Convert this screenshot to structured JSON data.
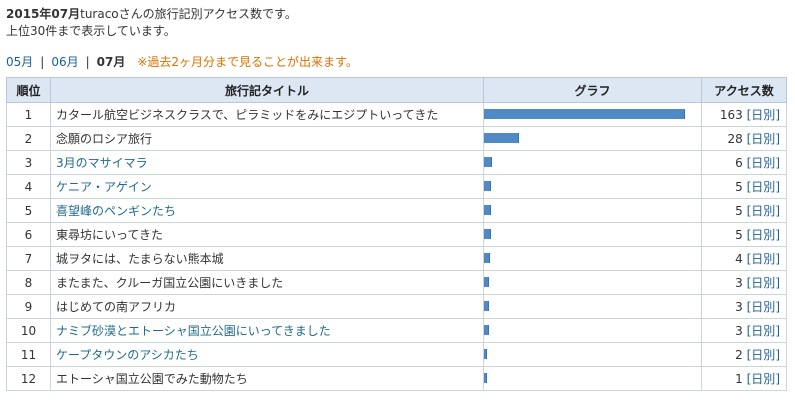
{
  "intro": {
    "period": "2015年07月",
    "user": "turaco",
    "rest": "さんの旅行記別アクセス数です。",
    "line2": "上位30件まで表示しています。"
  },
  "months": {
    "links": [
      "05月",
      "06月"
    ],
    "current": "07月",
    "note": "※過去2ヶ月分まで見ることが出来ます。"
  },
  "table": {
    "headers": [
      "順位",
      "旅行記タイトル",
      "グラフ",
      "アクセス数"
    ],
    "max_count": 163,
    "daily_label": "日別",
    "rows": [
      {
        "rank": "1",
        "title": "カタール航空ビジネスクラスで、ピラミッドをみにエジプトいってきた",
        "count": 163,
        "color": "#333333"
      },
      {
        "rank": "2",
        "title": "念願のロシア旅行",
        "count": 28,
        "color": "#333333"
      },
      {
        "rank": "3",
        "title": "3月のマサイマラ",
        "count": 6,
        "color": "#1f6b8e"
      },
      {
        "rank": "4",
        "title": "ケニア・アゲイン",
        "count": 5,
        "color": "#1f6b8e"
      },
      {
        "rank": "5",
        "title": "喜望峰のペンギンたち",
        "count": 5,
        "color": "#1f6b8e"
      },
      {
        "rank": "6",
        "title": "東尋坊にいってきた",
        "count": 5,
        "color": "#333333"
      },
      {
        "rank": "7",
        "title": "城ヲタには、たまらない熊本城",
        "count": 4,
        "color": "#333333"
      },
      {
        "rank": "8",
        "title": "またまた、クルーガ国立公園にいきました",
        "count": 3,
        "color": "#333333"
      },
      {
        "rank": "9",
        "title": "はじめての南アフリカ",
        "count": 3,
        "color": "#333333"
      },
      {
        "rank": "10",
        "title": "ナミブ砂漠とエトーシャ国立公園にいってきました",
        "count": 3,
        "color": "#1f6b8e"
      },
      {
        "rank": "11",
        "title": "ケープタウンのアシカたち",
        "count": 2,
        "color": "#1f6b8e"
      },
      {
        "rank": "12",
        "title": "エトーシャ国立公園でみた動物たち",
        "count": 1,
        "color": "#333333"
      }
    ]
  }
}
